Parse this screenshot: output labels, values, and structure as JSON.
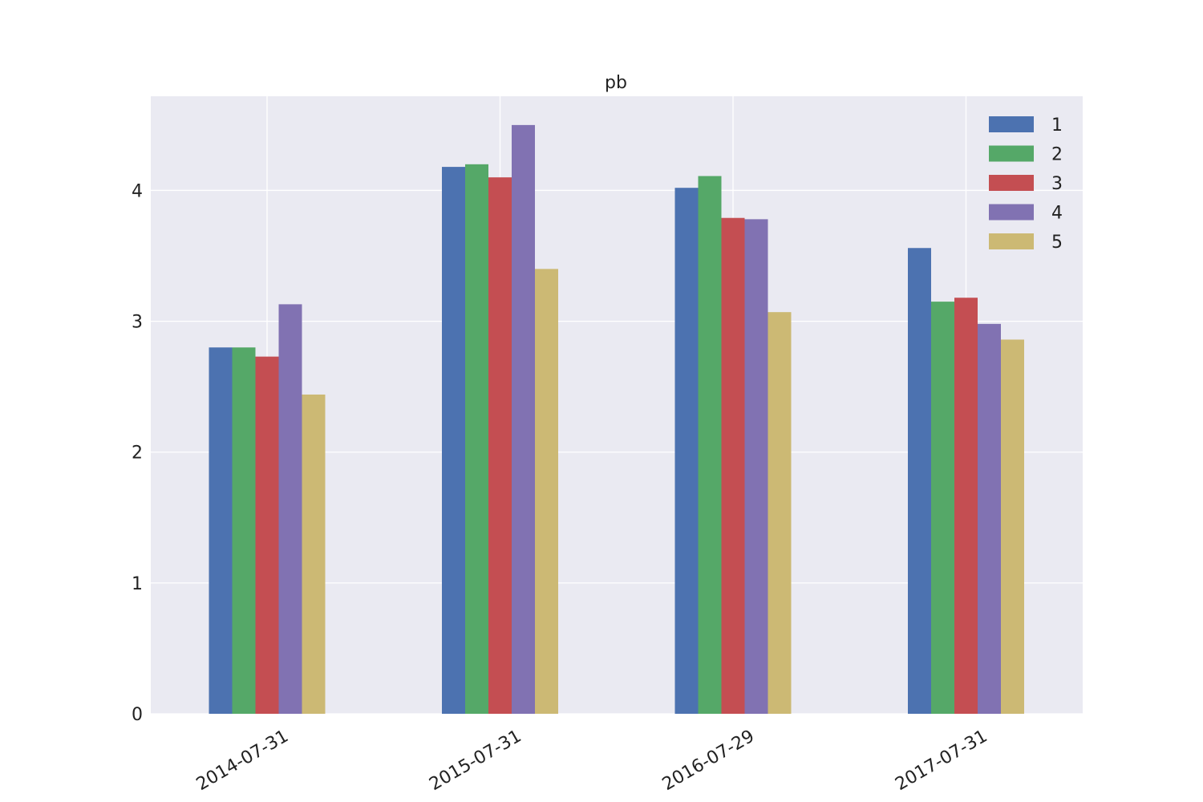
{
  "chart_data": {
    "type": "bar",
    "title": "pb",
    "xlabel": "",
    "ylabel": "",
    "categories": [
      "2014-07-31",
      "2015-07-31",
      "2016-07-29",
      "2017-07-31"
    ],
    "series": [
      {
        "name": "1",
        "color": "#4c72b0",
        "values": [
          2.8,
          4.18,
          4.02,
          3.56
        ]
      },
      {
        "name": "2",
        "color": "#55a868",
        "values": [
          2.8,
          4.2,
          4.11,
          3.15
        ]
      },
      {
        "name": "3",
        "color": "#c44e52",
        "values": [
          2.73,
          4.1,
          3.79,
          3.18
        ]
      },
      {
        "name": "4",
        "color": "#8172b2",
        "values": [
          3.13,
          4.5,
          3.78,
          2.98
        ]
      },
      {
        "name": "5",
        "color": "#ccb974",
        "values": [
          2.44,
          3.4,
          3.07,
          2.86
        ]
      }
    ],
    "yticks": [
      "0",
      "1",
      "2",
      "3",
      "4"
    ],
    "ylim": [
      0,
      4.72
    ],
    "grid": true,
    "legend_position": "top-right",
    "colors": {
      "background": "#eaeaf2",
      "grid": "#ffffff"
    }
  }
}
